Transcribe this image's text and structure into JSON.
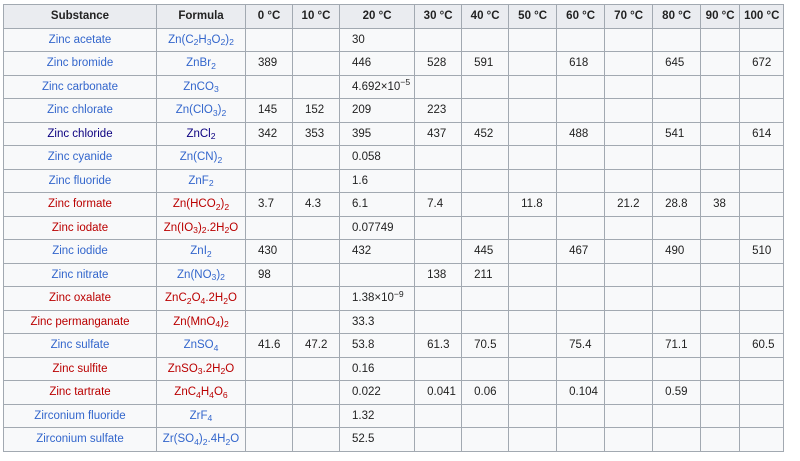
{
  "headers": [
    "Substance",
    "Formula",
    "0 °C",
    "10 °C",
    "20 °C",
    "30 °C",
    "40 °C",
    "50 °C",
    "60 °C",
    "70 °C",
    "80 °C",
    "90 °C",
    "100 °C"
  ],
  "link_colors": {
    "blue": "#3366cc",
    "red": "#ba0000",
    "visited": "#0b0080"
  },
  "rows": [
    {
      "substance": "Zinc acetate",
      "link": "blue",
      "formula": [
        [
          "Zn(C",
          "n"
        ],
        [
          "2",
          "sub"
        ],
        [
          "H",
          "n"
        ],
        [
          "3",
          "sub"
        ],
        [
          "O",
          "n"
        ],
        [
          "2",
          "sub"
        ],
        [
          ")",
          "n"
        ],
        [
          "2",
          "sub"
        ]
      ],
      "values": [
        "",
        "",
        "30",
        "",
        "",
        "",
        "",
        "",
        "",
        "",
        ""
      ]
    },
    {
      "substance": "Zinc bromide",
      "link": "blue",
      "formula": [
        [
          "ZnBr",
          "n"
        ],
        [
          "2",
          "sub"
        ]
      ],
      "values": [
        "389",
        "",
        "446",
        "528",
        "591",
        "",
        "618",
        "",
        "645",
        "",
        "672"
      ]
    },
    {
      "substance": "Zinc carbonate",
      "link": "blue",
      "formula": [
        [
          "ZnCO",
          "n"
        ],
        [
          "3",
          "sub"
        ]
      ],
      "values": [
        "",
        "",
        [
          [
            "4.692×10",
            "n"
          ],
          [
            "−5",
            "sup"
          ]
        ],
        "",
        "",
        "",
        "",
        "",
        "",
        "",
        ""
      ]
    },
    {
      "substance": "Zinc chlorate",
      "link": "blue",
      "formula": [
        [
          "Zn(ClO",
          "n"
        ],
        [
          "3",
          "sub"
        ],
        [
          ")",
          "n"
        ],
        [
          "2",
          "sub"
        ]
      ],
      "values": [
        "145",
        "152",
        "209",
        "223",
        "",
        "",
        "",
        "",
        "",
        "",
        ""
      ]
    },
    {
      "substance": "Zinc chloride",
      "link": "visited",
      "formula": [
        [
          "ZnCl",
          "n"
        ],
        [
          "2",
          "sub"
        ]
      ],
      "values": [
        "342",
        "353",
        "395",
        "437",
        "452",
        "",
        "488",
        "",
        "541",
        "",
        "614"
      ]
    },
    {
      "substance": "Zinc cyanide",
      "link": "blue",
      "formula": [
        [
          "Zn(CN)",
          "n"
        ],
        [
          "2",
          "sub"
        ]
      ],
      "values": [
        "",
        "",
        "0.058",
        "",
        "",
        "",
        "",
        "",
        "",
        "",
        ""
      ]
    },
    {
      "substance": "Zinc fluoride",
      "link": "blue",
      "formula": [
        [
          "ZnF",
          "n"
        ],
        [
          "2",
          "sub"
        ]
      ],
      "values": [
        "",
        "",
        "1.6",
        "",
        "",
        "",
        "",
        "",
        "",
        "",
        ""
      ]
    },
    {
      "substance": "Zinc formate",
      "link": "red",
      "formula": [
        [
          "Zn(HCO",
          "n"
        ],
        [
          "2",
          "sub"
        ],
        [
          ")",
          "n"
        ],
        [
          "2",
          "sub"
        ]
      ],
      "values": [
        "3.7",
        "4.3",
        "6.1",
        "7.4",
        "",
        "11.8",
        "",
        "21.2",
        "28.8",
        "38",
        ""
      ]
    },
    {
      "substance": "Zinc iodate",
      "link": "red",
      "formula": [
        [
          "Zn(IO",
          "n"
        ],
        [
          "3",
          "sub"
        ],
        [
          ")",
          "n"
        ],
        [
          "2",
          "sub"
        ],
        [
          ".2H",
          "n"
        ],
        [
          "2",
          "sub"
        ],
        [
          "O",
          "n"
        ]
      ],
      "values": [
        "",
        "",
        "0.07749",
        "",
        "",
        "",
        "",
        "",
        "",
        "",
        ""
      ]
    },
    {
      "substance": "Zinc iodide",
      "link": "blue",
      "formula": [
        [
          "ZnI",
          "n"
        ],
        [
          "2",
          "sub"
        ]
      ],
      "values": [
        "430",
        "",
        "432",
        "",
        "445",
        "",
        "467",
        "",
        "490",
        "",
        "510"
      ]
    },
    {
      "substance": "Zinc nitrate",
      "link": "blue",
      "formula": [
        [
          "Zn(NO",
          "n"
        ],
        [
          "3",
          "sub"
        ],
        [
          ")",
          "n"
        ],
        [
          "2",
          "sub"
        ]
      ],
      "values": [
        "98",
        "",
        "",
        "138",
        "211",
        "",
        "",
        "",
        "",
        "",
        ""
      ]
    },
    {
      "substance": "Zinc oxalate",
      "link": "red",
      "formula": [
        [
          "ZnC",
          "n"
        ],
        [
          "2",
          "sub"
        ],
        [
          "O",
          "n"
        ],
        [
          "4",
          "sub"
        ],
        [
          ".2H",
          "n"
        ],
        [
          "2",
          "sub"
        ],
        [
          "O",
          "n"
        ]
      ],
      "values": [
        "",
        "",
        [
          [
            "1.38×10",
            "n"
          ],
          [
            "−9",
            "sup"
          ]
        ],
        "",
        "",
        "",
        "",
        "",
        "",
        "",
        ""
      ]
    },
    {
      "substance": "Zinc permanganate",
      "link": "red",
      "formula": [
        [
          "Zn(MnO",
          "n"
        ],
        [
          "4",
          "sub"
        ],
        [
          ")",
          "n"
        ],
        [
          "2",
          "sub"
        ]
      ],
      "values": [
        "",
        "",
        "33.3",
        "",
        "",
        "",
        "",
        "",
        "",
        "",
        ""
      ]
    },
    {
      "substance": "Zinc sulfate",
      "link": "blue",
      "formula": [
        [
          "ZnSO",
          "n"
        ],
        [
          "4",
          "sub"
        ]
      ],
      "values": [
        "41.6",
        "47.2",
        "53.8",
        "61.3",
        "70.5",
        "",
        "75.4",
        "",
        "71.1",
        "",
        "60.5"
      ]
    },
    {
      "substance": "Zinc sulfite",
      "link": "red",
      "formula": [
        [
          "ZnSO",
          "n"
        ],
        [
          "3",
          "sub"
        ],
        [
          ".2H",
          "n"
        ],
        [
          "2",
          "sub"
        ],
        [
          "O",
          "n"
        ]
      ],
      "values": [
        "",
        "",
        "0.16",
        "",
        "",
        "",
        "",
        "",
        "",
        "",
        ""
      ]
    },
    {
      "substance": "Zinc tartrate",
      "link": "red",
      "formula": [
        [
          "ZnC",
          "n"
        ],
        [
          "4",
          "sub"
        ],
        [
          "H",
          "n"
        ],
        [
          "4",
          "sub"
        ],
        [
          "O",
          "n"
        ],
        [
          "6",
          "sub"
        ]
      ],
      "values": [
        "",
        "",
        "0.022",
        "0.041",
        "0.06",
        "",
        "0.104",
        "",
        "0.59",
        "",
        ""
      ]
    },
    {
      "substance": "Zirconium fluoride",
      "link": "blue",
      "formula": [
        [
          "ZrF",
          "n"
        ],
        [
          "4",
          "sub"
        ]
      ],
      "values": [
        "",
        "",
        "1.32",
        "",
        "",
        "",
        "",
        "",
        "",
        "",
        ""
      ]
    },
    {
      "substance": "Zirconium sulfate",
      "link": "blue",
      "formula": [
        [
          "Zr(SO",
          "n"
        ],
        [
          "4",
          "sub"
        ],
        [
          ")",
          "n"
        ],
        [
          "2",
          "sub"
        ],
        [
          ".4H",
          "n"
        ],
        [
          "2",
          "sub"
        ],
        [
          "O",
          "n"
        ]
      ],
      "values": [
        "",
        "",
        "52.5",
        "",
        "",
        "",
        "",
        "",
        "",
        "",
        ""
      ]
    }
  ]
}
